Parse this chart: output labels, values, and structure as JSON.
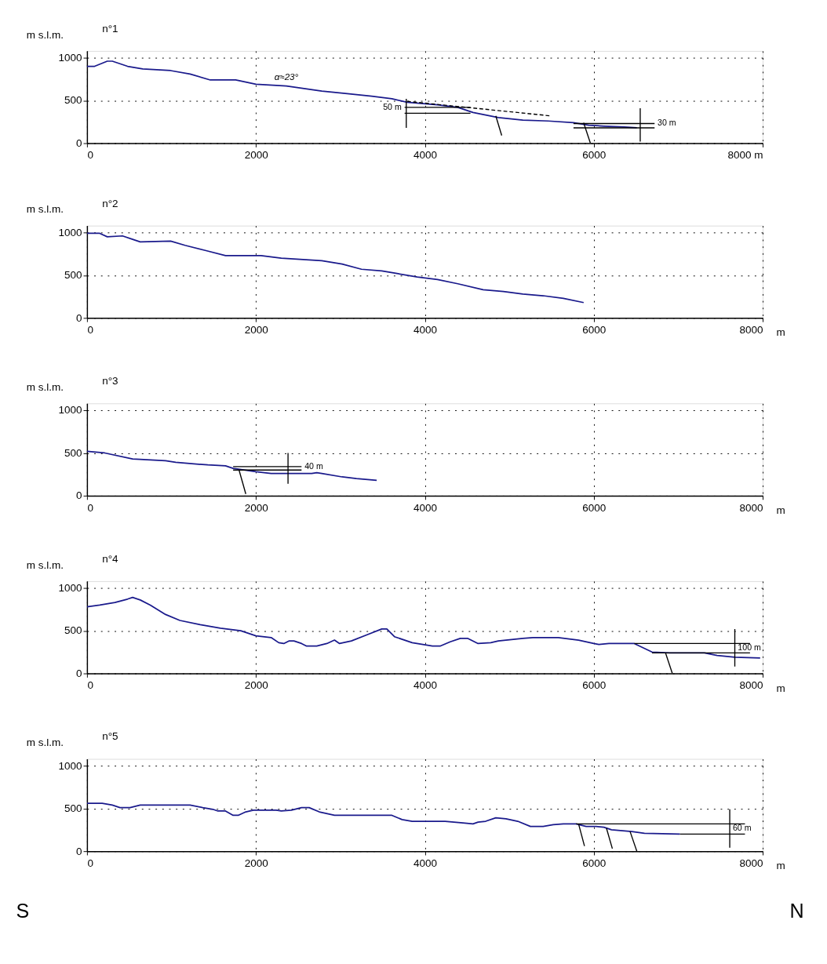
{
  "chart_data": [
    {
      "type": "line",
      "title": "n°1",
      "ylabel": "m s.l.m.",
      "xlim": [
        0,
        8000
      ],
      "ylim": [
        0,
        1080
      ],
      "xticks": [
        0,
        2000,
        4000,
        6000,
        {
          "value": 8000,
          "label": "8000 m"
        }
      ],
      "yticks": [
        0,
        500,
        1000
      ],
      "grid": true,
      "annotations": [
        {
          "text": "α≈23°",
          "x": 2360,
          "y": 670
        }
      ],
      "series": [
        {
          "color": "#1a1a8c",
          "x": [
            0,
            90,
            240,
            300,
            480,
            660,
            990,
            1220,
            1460,
            1760,
            2000,
            2360,
            2780,
            3080,
            3370,
            3610,
            3790,
            4150,
            4390,
            4570,
            4870,
            5160,
            5460,
            5760,
            5940,
            6120,
            6360,
            6510
          ],
          "values": [
            900,
            900,
            960,
            960,
            900,
            870,
            850,
            810,
            740,
            740,
            690,
            670,
            610,
            580,
            550,
            520,
            480,
            450,
            420,
            360,
            300,
            270,
            260,
            240,
            210,
            200,
            190,
            180
          ]
        },
        {
          "color": "#000000",
          "line_style": "dashed",
          "x": [
            3790,
            5490
          ],
          "values": [
            490,
            320
          ]
        },
        {
          "color": "#000000",
          "x": [
            4840,
            4910
          ],
          "values": [
            320,
            90
          ]
        },
        {
          "color": "#000000",
          "x": [
            5880,
            5960
          ],
          "values": [
            240,
            0
          ]
        },
        {
          "name": "50 m",
          "color": "#000000",
          "x": [
            4540,
            3760
          ],
          "values": [
            420,
            420
          ]
        },
        {
          "color": "#000000",
          "x": [
            3760,
            4540
          ],
          "values": [
            350,
            350
          ]
        },
        {
          "color": "#000000",
          "x": [
            3780,
            3780
          ],
          "values": [
            520,
            180
          ]
        },
        {
          "name": "30 m",
          "color": "#000000",
          "x": [
            5760,
            6720
          ],
          "values": [
            230,
            230
          ]
        },
        {
          "color": "#000000",
          "x": [
            5760,
            6720
          ],
          "values": [
            180,
            180
          ]
        },
        {
          "color": "#000000",
          "x": [
            6550,
            6550
          ],
          "values": [
            410,
            20
          ]
        }
      ]
    },
    {
      "type": "line",
      "title": "n°2",
      "ylabel": "m s.l.m.",
      "xlabel": "m",
      "xlim": [
        0,
        8000
      ],
      "ylim": [
        0,
        1080
      ],
      "xticks": [
        0,
        2000,
        4000,
        6000,
        8000
      ],
      "yticks": [
        0,
        500,
        1000
      ],
      "grid": true,
      "series": [
        {
          "color": "#1a1a8c",
          "x": [
            0,
            150,
            240,
            420,
            540,
            630,
            990,
            1160,
            1400,
            1640,
            2060,
            2300,
            2780,
            3020,
            3250,
            3490,
            3670,
            3910,
            4150,
            4390,
            4690,
            4930,
            5160,
            5400,
            5640,
            5880
          ],
          "values": [
            990,
            990,
            950,
            960,
            920,
            890,
            900,
            850,
            790,
            730,
            730,
            700,
            670,
            630,
            570,
            550,
            520,
            480,
            450,
            400,
            330,
            310,
            280,
            260,
            230,
            180
          ]
        }
      ]
    },
    {
      "type": "line",
      "title": "n°3",
      "ylabel": "m s.l.m.",
      "xlabel": "m",
      "xlim": [
        0,
        8000
      ],
      "ylim": [
        0,
        1080
      ],
      "xticks": [
        0,
        2000,
        4000,
        6000,
        8000
      ],
      "yticks": [
        0,
        500,
        1000
      ],
      "grid": true,
      "series": [
        {
          "color": "#1a1a8c",
          "x": [
            0,
            210,
            540,
            930,
            1050,
            1430,
            1640,
            1730,
            2000,
            2180,
            2660,
            2720,
            2780,
            3020,
            3190,
            3430
          ],
          "values": [
            520,
            500,
            430,
            410,
            390,
            360,
            350,
            320,
            280,
            260,
            260,
            270,
            260,
            220,
            200,
            180
          ]
        },
        {
          "color": "#000000",
          "x": [
            1800,
            1880
          ],
          "values": [
            300,
            20
          ]
        },
        {
          "name": "40 m",
          "color": "#000000",
          "x": [
            1730,
            2540
          ],
          "values": [
            340,
            340
          ]
        },
        {
          "color": "#000000",
          "x": [
            1730,
            2540
          ],
          "values": [
            300,
            300
          ]
        },
        {
          "color": "#000000",
          "x": [
            2380,
            2380
          ],
          "values": [
            500,
            140
          ]
        }
      ]
    },
    {
      "type": "line",
      "title": "n°4",
      "ylabel": "m s.l.m.",
      "xlabel": "m",
      "xlim": [
        0,
        8000
      ],
      "ylim": [
        0,
        1080
      ],
      "xticks": [
        0,
        2000,
        4000,
        6000,
        8000
      ],
      "yticks": [
        0,
        500,
        1000
      ],
      "grid": true,
      "series": [
        {
          "color": "#1a1a8c",
          "x": [
            0,
            150,
            330,
            480,
            540,
            630,
            750,
            930,
            1100,
            1340,
            1580,
            1820,
            2000,
            2180,
            2270,
            2330,
            2390,
            2450,
            2540,
            2600,
            2720,
            2840,
            2930,
            2990,
            3130,
            3310,
            3490,
            3550,
            3640,
            3850,
            4090,
            4180,
            4300,
            4420,
            4510,
            4630,
            4780,
            4870,
            5160,
            5280,
            5580,
            5820,
            6000,
            6060,
            6180,
            6480,
            6690,
            6900,
            7310,
            7460,
            7670,
            7970
          ],
          "values": [
            780,
            800,
            830,
            870,
            890,
            860,
            800,
            690,
            620,
            570,
            530,
            500,
            440,
            420,
            360,
            350,
            380,
            380,
            350,
            320,
            320,
            350,
            390,
            350,
            380,
            450,
            520,
            520,
            430,
            360,
            320,
            320,
            370,
            410,
            410,
            350,
            360,
            380,
            410,
            420,
            420,
            390,
            350,
            340,
            350,
            350,
            250,
            240,
            240,
            210,
            190,
            180
          ]
        },
        {
          "color": "#000000",
          "x": [
            6850,
            6930
          ],
          "values": [
            240,
            0
          ]
        },
        {
          "color": "#000000",
          "x": [
            6480,
            7850
          ],
          "values": [
            350,
            350
          ]
        },
        {
          "color": "#000000",
          "x": [
            6690,
            7850
          ],
          "values": [
            240,
            240
          ]
        },
        {
          "name": "100 m",
          "color": "#000000",
          "x": [
            7670,
            7670
          ],
          "values": [
            520,
            80
          ]
        }
      ]
    },
    {
      "type": "line",
      "title": "n°5",
      "ylabel": "m s.l.m.",
      "xlabel": "m",
      "xlim": [
        0,
        8000
      ],
      "ylim": [
        0,
        1080
      ],
      "xticks": [
        0,
        2000,
        4000,
        6000,
        8000
      ],
      "yticks": [
        0,
        500,
        1000
      ],
      "grid": true,
      "annotations": [
        "S",
        "N"
      ],
      "series": [
        {
          "color": "#1a1a8c",
          "x": [
            0,
            180,
            300,
            390,
            510,
            630,
            1220,
            1370,
            1490,
            1550,
            1640,
            1730,
            1790,
            1880,
            1970,
            2030,
            2150,
            2240,
            2300,
            2420,
            2540,
            2630,
            2750,
            2930,
            3610,
            3730,
            3850,
            4150,
            4240,
            4450,
            4570,
            4630,
            4720,
            4840,
            4960,
            5100,
            5250,
            5400,
            5520,
            5640,
            5790,
            5910,
            6030,
            6120,
            6210,
            6450,
            6600,
            7020
          ],
          "values": [
            560,
            560,
            540,
            510,
            510,
            540,
            540,
            510,
            490,
            470,
            470,
            420,
            420,
            460,
            480,
            480,
            480,
            480,
            470,
            480,
            510,
            510,
            460,
            420,
            420,
            370,
            350,
            350,
            350,
            330,
            320,
            340,
            350,
            390,
            380,
            350,
            290,
            290,
            310,
            320,
            320,
            290,
            290,
            280,
            250,
            230,
            210,
            200
          ]
        },
        {
          "color": "#000000",
          "x": [
            5820,
            5890
          ],
          "values": [
            320,
            60
          ]
        },
        {
          "color": "#000000",
          "x": [
            6150,
            6220
          ],
          "values": [
            270,
            30
          ]
        },
        {
          "color": "#000000",
          "x": [
            6430,
            6510
          ],
          "values": [
            230,
            0
          ]
        },
        {
          "color": "#000000",
          "x": [
            5790,
            7790
          ],
          "values": [
            320,
            320
          ]
        },
        {
          "color": "#000000",
          "x": [
            7020,
            7790
          ],
          "values": [
            200,
            200
          ]
        },
        {
          "name": "60 m",
          "color": "#000000",
          "x": [
            7610,
            7610
          ],
          "values": [
            490,
            40
          ]
        }
      ]
    }
  ]
}
